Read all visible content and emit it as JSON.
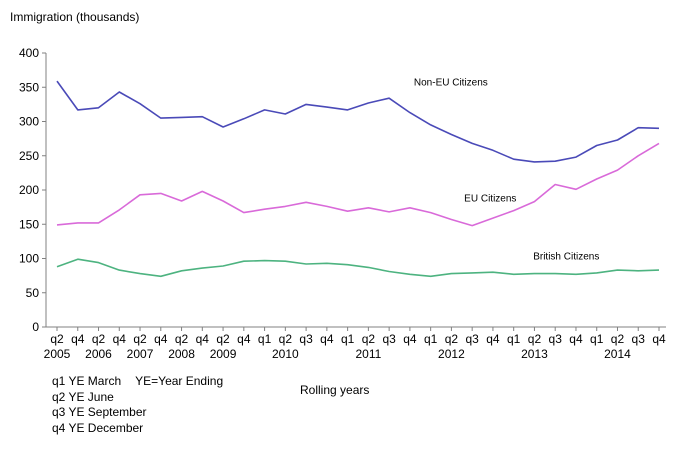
{
  "chart_data": {
    "type": "line",
    "ylabel": "Immigration (thousands)",
    "xlabel": "Rolling years",
    "ylim": [
      0,
      400
    ],
    "yticks": [
      0,
      50,
      100,
      150,
      200,
      250,
      300,
      350,
      400
    ],
    "grid": false,
    "x": [
      "2005 q2",
      "2005 q4",
      "2006 q2",
      "2006 q4",
      "2007 q2",
      "2007 q4",
      "2008 q2",
      "2008 q4",
      "2009 q2",
      "2009 q4",
      "2010 q1",
      "2010 q2",
      "2010 q3",
      "2010 q4",
      "2011 q1",
      "2011 q2",
      "2011 q3",
      "2011 q4",
      "2012 q1",
      "2012 q2",
      "2012 q3",
      "2012 q4",
      "2013 q1",
      "2013 q2",
      "2013 q3",
      "2013 q4",
      "2014 q1",
      "2014 q2",
      "2014 q3",
      "2014 q4"
    ],
    "tick_labels": [
      {
        "q": "q2",
        "year": "2005"
      },
      {
        "q": "q4",
        "year": ""
      },
      {
        "q": "q2",
        "year": "2006"
      },
      {
        "q": "q4",
        "year": ""
      },
      {
        "q": "q2",
        "year": "2007"
      },
      {
        "q": "q4",
        "year": ""
      },
      {
        "q": "q2",
        "year": "2008"
      },
      {
        "q": "q4",
        "year": ""
      },
      {
        "q": "q2",
        "year": "2009"
      },
      {
        "q": "q4",
        "year": ""
      },
      {
        "q": "q1",
        "year": ""
      },
      {
        "q": "q2",
        "year": "2010"
      },
      {
        "q": "q3",
        "year": ""
      },
      {
        "q": "q4",
        "year": ""
      },
      {
        "q": "q1",
        "year": ""
      },
      {
        "q": "q2",
        "year": "2011"
      },
      {
        "q": "q3",
        "year": ""
      },
      {
        "q": "q4",
        "year": ""
      },
      {
        "q": "q1",
        "year": ""
      },
      {
        "q": "q2",
        "year": "2012"
      },
      {
        "q": "q3",
        "year": ""
      },
      {
        "q": "q4",
        "year": ""
      },
      {
        "q": "q1",
        "year": ""
      },
      {
        "q": "q2",
        "year": "2013"
      },
      {
        "q": "q3",
        "year": ""
      },
      {
        "q": "q4",
        "year": ""
      },
      {
        "q": "q1",
        "year": ""
      },
      {
        "q": "q2",
        "year": "2014"
      },
      {
        "q": "q3",
        "year": ""
      },
      {
        "q": "q4",
        "year": ""
      }
    ],
    "series": [
      {
        "name": "Non-EU Citizens",
        "color": "#4a4ab8",
        "values": [
          359,
          317,
          320,
          343,
          326,
          305,
          306,
          307,
          292,
          304,
          317,
          311,
          325,
          321,
          317,
          327,
          334,
          313,
          295,
          281,
          268,
          258,
          245,
          241,
          242,
          248,
          265,
          273,
          291,
          290
        ]
      },
      {
        "name": "EU Citizens",
        "color": "#d96ad9",
        "values": [
          149,
          152,
          152,
          171,
          193,
          195,
          184,
          198,
          184,
          167,
          172,
          176,
          182,
          176,
          169,
          174,
          168,
          174,
          167,
          157,
          148,
          159,
          170,
          183,
          208,
          201,
          216,
          229,
          250,
          268
        ]
      },
      {
        "name": "British Citizens",
        "color": "#4db380",
        "values": [
          88,
          99,
          94,
          83,
          78,
          74,
          82,
          86,
          89,
          96,
          97,
          96,
          92,
          93,
          91,
          87,
          81,
          77,
          74,
          78,
          79,
          80,
          77,
          78,
          78,
          77,
          79,
          83,
          82,
          83
        ]
      }
    ]
  },
  "notes": [
    "q1 YE March",
    "YE=Year Ending",
    "q2 YE June",
    "q3 YE September",
    "q4 YE December"
  ]
}
